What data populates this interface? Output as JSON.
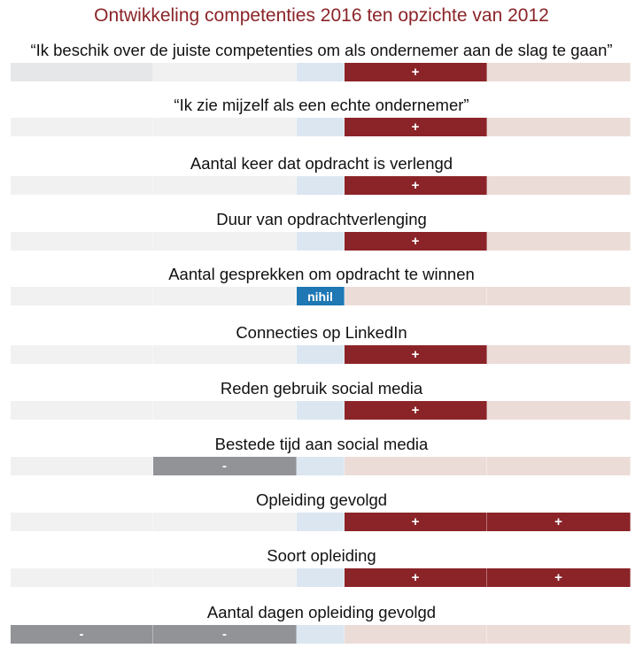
{
  "chart_data": {
    "type": "bar",
    "title": "Ontwikkeling competenties 2016 ten opzichte van 2012",
    "scale": [
      -2,
      2
    ],
    "colors": {
      "negative": "#929396",
      "positive": "#8b2428",
      "neutral": "#1f77b4"
    },
    "rows": [
      {
        "label": "“Ik beschik over de juiste competenties om als ondernemer aan de slag te gaan”",
        "value": 1,
        "mark": "+"
      },
      {
        "label": "“Ik zie mijzelf als een echte ondernemer”",
        "value": 1,
        "mark": "+"
      },
      {
        "label": "Aantal keer dat opdracht is verlengd",
        "value": 1,
        "mark": "+"
      },
      {
        "label": "Duur van opdrachtverlenging",
        "value": 1,
        "mark": "+"
      },
      {
        "label": "Aantal gesprekken om opdracht te winnen",
        "value": 0,
        "mark": "nihil"
      },
      {
        "label": "Connecties op LinkedIn",
        "value": 1,
        "mark": "+"
      },
      {
        "label": "Reden gebruik social media",
        "value": 1,
        "mark": "+"
      },
      {
        "label": "Bestede tijd aan social media",
        "value": -1,
        "mark": "-"
      },
      {
        "label": "Opleiding gevolgd",
        "value": 2,
        "mark": "+"
      },
      {
        "label": "Soort opleiding",
        "value": 2,
        "mark": "+"
      },
      {
        "label": "Aantal dagen opleiding gevolgd",
        "value": -2,
        "mark": "-"
      }
    ]
  }
}
